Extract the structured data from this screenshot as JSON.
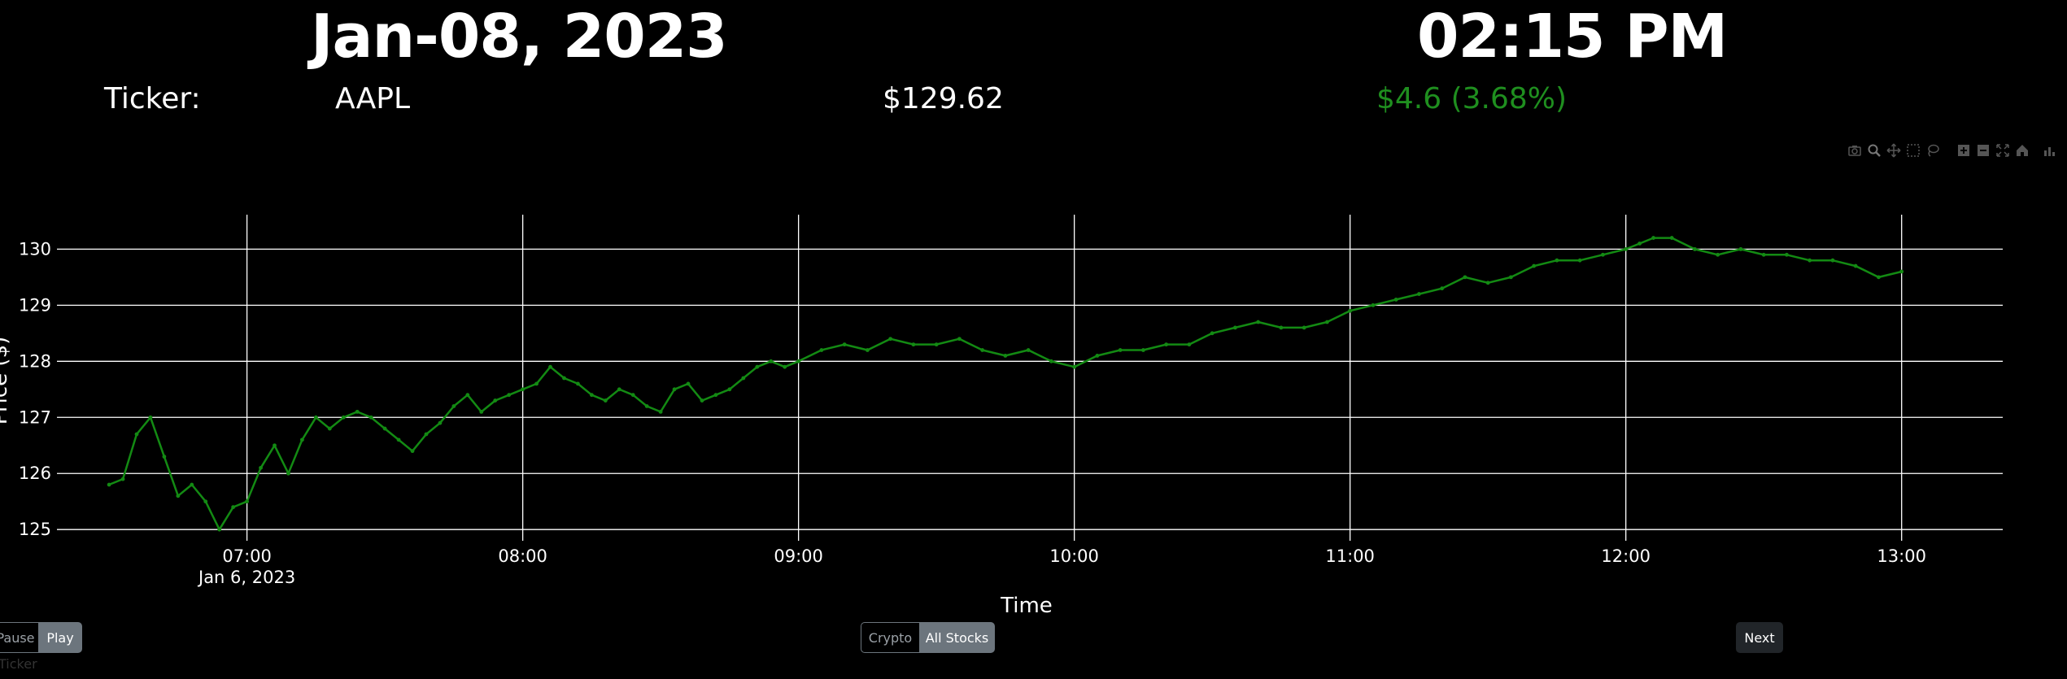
{
  "header": {
    "date": "Jan-08, 2023",
    "time": "02:15 PM",
    "ticker_label": "Ticker:",
    "ticker_value": "AAPL",
    "price": "$129.62",
    "change": "$4.6 (3.68%)",
    "change_color": "#1f8f1f"
  },
  "modebar": {
    "icons": [
      "camera-icon",
      "zoom-icon",
      "pan-icon",
      "box-select-icon",
      "lasso-icon",
      "zoom-in-icon",
      "zoom-out-icon",
      "autoscale-icon",
      "home-icon",
      "plotly-logo-icon"
    ]
  },
  "chart_data": {
    "type": "line",
    "xlabel": "Time",
    "ylabel": "Price ($)",
    "x_ticks": [
      "07:00",
      "08:00",
      "09:00",
      "10:00",
      "11:00",
      "12:00",
      "13:00"
    ],
    "x_tick_date": "Jan 6, 2023",
    "y_ticks": [
      125,
      126,
      127,
      128,
      129,
      130
    ],
    "xlim": [
      "06:16",
      "13:22"
    ],
    "ylim": [
      124.8,
      130.6
    ],
    "grid": true,
    "series": [
      {
        "color": "#138a13",
        "x": [
          "06:30",
          "06:33",
          "06:36",
          "06:39",
          "06:42",
          "06:45",
          "06:48",
          "06:51",
          "06:54",
          "06:57",
          "07:00",
          "07:03",
          "07:06",
          "07:09",
          "07:12",
          "07:15",
          "07:18",
          "07:21",
          "07:24",
          "07:27",
          "07:30",
          "07:33",
          "07:36",
          "07:39",
          "07:42",
          "07:45",
          "07:48",
          "07:51",
          "07:54",
          "07:57",
          "08:00",
          "08:03",
          "08:06",
          "08:09",
          "08:12",
          "08:15",
          "08:18",
          "08:21",
          "08:24",
          "08:27",
          "08:30",
          "08:33",
          "08:36",
          "08:39",
          "08:42",
          "08:45",
          "08:48",
          "08:51",
          "08:54",
          "08:57",
          "09:00",
          "09:05",
          "09:10",
          "09:15",
          "09:20",
          "09:25",
          "09:30",
          "09:35",
          "09:40",
          "09:45",
          "09:50",
          "09:55",
          "10:00",
          "10:05",
          "10:10",
          "10:15",
          "10:20",
          "10:25",
          "10:30",
          "10:35",
          "10:40",
          "10:45",
          "10:50",
          "10:55",
          "11:00",
          "11:05",
          "11:10",
          "11:15",
          "11:20",
          "11:25",
          "11:30",
          "11:35",
          "11:40",
          "11:45",
          "11:50",
          "11:55",
          "12:00",
          "12:03",
          "12:06",
          "12:10",
          "12:15",
          "12:20",
          "12:25",
          "12:30",
          "12:35",
          "12:40",
          "12:45",
          "12:50",
          "12:55",
          "13:00"
        ],
        "y": [
          125.8,
          125.9,
          126.7,
          127.0,
          126.3,
          125.6,
          125.8,
          125.5,
          125.0,
          125.4,
          125.5,
          126.1,
          126.5,
          126.0,
          126.6,
          127.0,
          126.8,
          127.0,
          127.1,
          127.0,
          126.8,
          126.6,
          126.4,
          126.7,
          126.9,
          127.2,
          127.4,
          127.1,
          127.3,
          127.4,
          127.5,
          127.6,
          127.9,
          127.7,
          127.6,
          127.4,
          127.3,
          127.5,
          127.4,
          127.2,
          127.1,
          127.5,
          127.6,
          127.3,
          127.4,
          127.5,
          127.7,
          127.9,
          128.0,
          127.9,
          128.0,
          128.2,
          128.3,
          128.2,
          128.4,
          128.3,
          128.3,
          128.4,
          128.2,
          128.1,
          128.2,
          128.0,
          127.9,
          128.1,
          128.2,
          128.2,
          128.3,
          128.3,
          128.5,
          128.6,
          128.7,
          128.6,
          128.6,
          128.7,
          128.9,
          129.0,
          129.1,
          129.2,
          129.3,
          129.5,
          129.4,
          129.5,
          129.7,
          129.8,
          129.8,
          129.9,
          130.0,
          130.1,
          130.2,
          130.2,
          130.0,
          129.9,
          130.0,
          129.9,
          129.9,
          129.8,
          129.8,
          129.7,
          129.5,
          129.6
        ]
      }
    ]
  },
  "controls": {
    "pause": "Pause",
    "play": "Play",
    "crypto": "Crypto",
    "all_stocks": "All Stocks",
    "next": "Next"
  },
  "footer": {
    "label": "Ticker"
  }
}
